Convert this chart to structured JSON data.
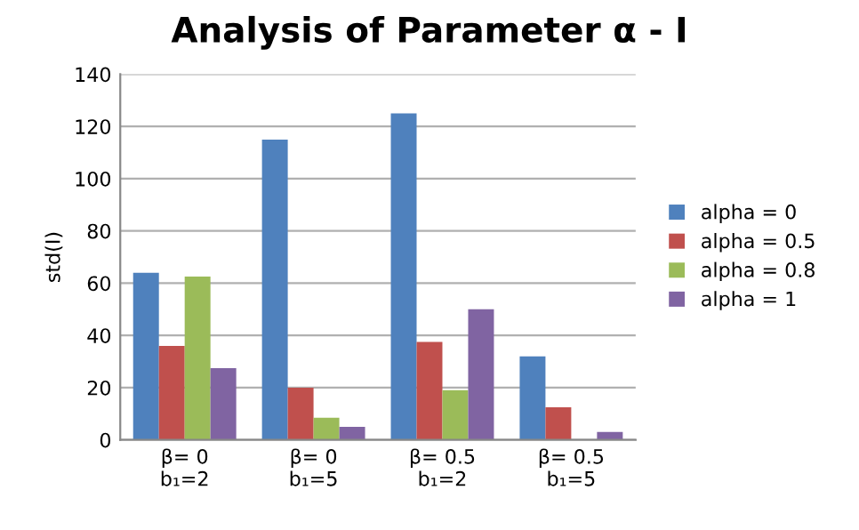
{
  "chart_data": {
    "type": "bar",
    "title": "Analysis of Parameter α - I",
    "ylabel": "std(I)",
    "categories": [
      "β= 0\nb₁=2",
      "β= 0\nb₁=5",
      "β= 0.5\nb₁=2",
      "β= 0.5\nb₁=5"
    ],
    "series": [
      {
        "name": "alpha = 0",
        "color": "#4f81bd",
        "values": [
          64,
          115,
          125,
          32
        ]
      },
      {
        "name": "alpha = 0.5",
        "color": "#c0504d",
        "values": [
          36,
          20,
          37.5,
          12.5
        ]
      },
      {
        "name": "alpha = 0.8",
        "color": "#9bbb59",
        "values": [
          62.5,
          8.5,
          19,
          null
        ]
      },
      {
        "name": "alpha = 1",
        "color": "#8064a2",
        "values": [
          27.5,
          5,
          50,
          3
        ]
      }
    ],
    "ylim": [
      0,
      140
    ],
    "yticks": [
      0,
      20,
      40,
      60,
      80,
      100,
      120,
      140
    ],
    "grid": "y",
    "legend": "right"
  }
}
